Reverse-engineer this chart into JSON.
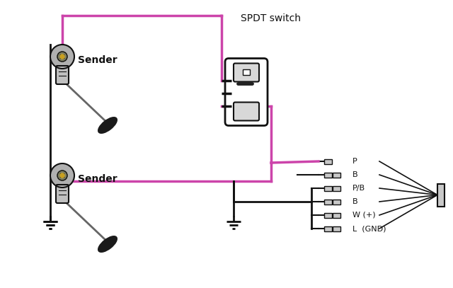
{
  "bg_color": "#ffffff",
  "pink": "#cc44aa",
  "black": "#111111",
  "gray_disk": "#b0b0b0",
  "gray_body": "#c0c0c0",
  "gray_inner": "#808060",
  "gold": "#c8a020",
  "float_color": "#1a1a1a",
  "arm_color": "#666666",
  "conn_color": "#c8c8c8",
  "title": "SPDT switch",
  "connector_labels": [
    "P",
    "B",
    "P/B",
    "B",
    "W (+)",
    "L  (GND)"
  ],
  "sender_label": "Sender",
  "fig_width": 6.4,
  "fig_height": 4.07,
  "dpi": 100
}
